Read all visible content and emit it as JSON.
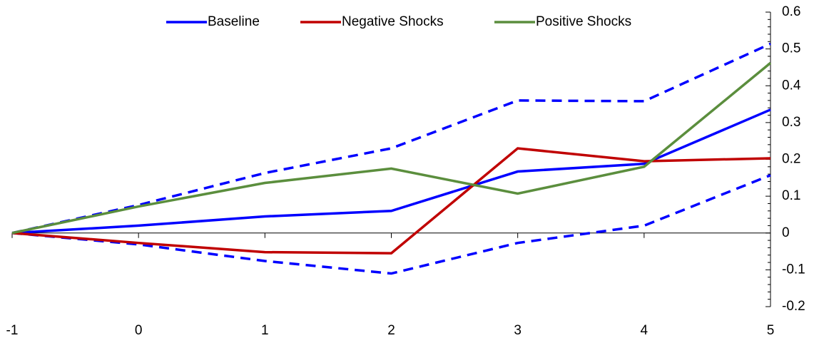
{
  "chart_data": {
    "type": "line",
    "x": [
      -1,
      0,
      1,
      2,
      3,
      4,
      5
    ],
    "xlim": [
      -1,
      5
    ],
    "xticks": [
      -1,
      0,
      1,
      2,
      3,
      4,
      5
    ],
    "ylim": [
      -0.2,
      0.6
    ],
    "yticks": [
      -0.2,
      -0.1,
      0,
      0.1,
      0.2,
      0.3,
      0.4,
      0.5,
      0.6
    ],
    "y_axis_side": "right",
    "legend": "top",
    "series": [
      {
        "name": "Baseline",
        "color": "#0000ff",
        "values": [
          0,
          0.02,
          0.045,
          0.06,
          0.167,
          0.188,
          0.335
        ]
      },
      {
        "name": "Negative Shocks",
        "color": "#c00000",
        "values": [
          0,
          -0.027,
          -0.052,
          -0.055,
          0.23,
          0.195,
          0.203
        ]
      },
      {
        "name": "Positive Shocks",
        "color": "#5b8e3d",
        "values": [
          0,
          0.072,
          0.136,
          0.175,
          0.107,
          0.18,
          0.462
        ]
      }
    ],
    "bands": [
      {
        "color": "#0000ff",
        "dashed": true,
        "values": [
          0,
          0.076,
          0.163,
          0.23,
          0.36,
          0.358,
          0.514
        ]
      },
      {
        "color": "#0000ff",
        "dashed": true,
        "values": [
          0,
          -0.031,
          -0.076,
          -0.11,
          -0.027,
          0.02,
          0.157
        ]
      }
    ]
  }
}
